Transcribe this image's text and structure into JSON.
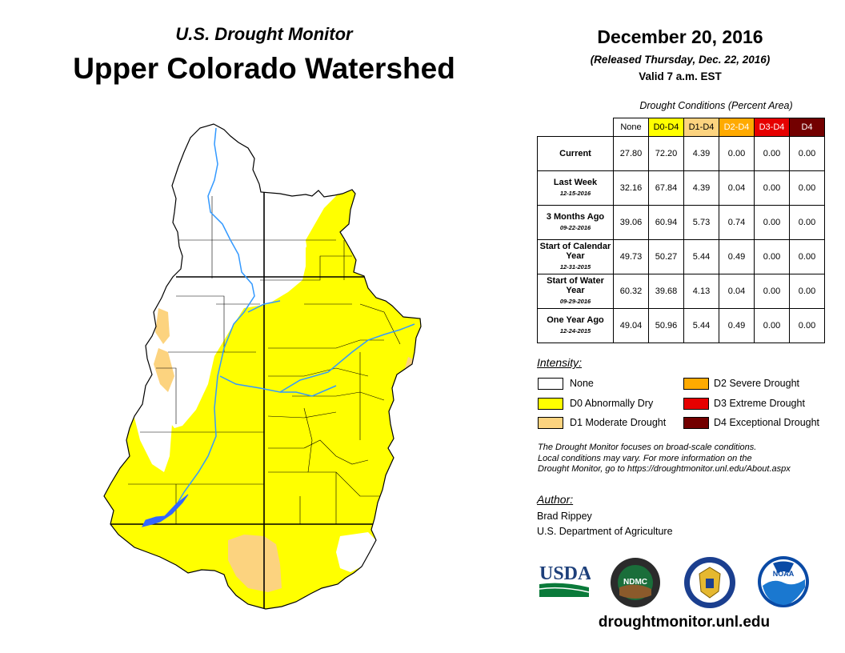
{
  "header": {
    "subtitle": "U.S. Drought Monitor",
    "title": "Upper Colorado Watershed",
    "date": "December 20, 2016",
    "released": "(Released Thursday, Dec. 22, 2016)",
    "valid": "Valid 7 a.m. EST"
  },
  "table": {
    "caption": "Drought Conditions (Percent Area)",
    "columns": [
      "None",
      "D0-D4",
      "D1-D4",
      "D2-D4",
      "D3-D4",
      "D4"
    ],
    "column_colors": [
      "#ffffff",
      "#ffff00",
      "#fcd37f",
      "#ffaa00",
      "#e60000",
      "#730000"
    ],
    "column_text_colors": [
      "#000000",
      "#000000",
      "#000000",
      "#ffffff",
      "#ffffff",
      "#ffffff"
    ],
    "rows": [
      {
        "label": "Current",
        "date": "",
        "values": [
          "27.80",
          "72.20",
          "4.39",
          "0.00",
          "0.00",
          "0.00"
        ]
      },
      {
        "label": "Last Week",
        "date": "12-15-2016",
        "values": [
          "32.16",
          "67.84",
          "4.39",
          "0.04",
          "0.00",
          "0.00"
        ]
      },
      {
        "label": "3 Months Ago",
        "date": "09-22-2016",
        "values": [
          "39.06",
          "60.94",
          "5.73",
          "0.74",
          "0.00",
          "0.00"
        ]
      },
      {
        "label": "Start of Calendar Year",
        "date": "12-31-2015",
        "values": [
          "49.73",
          "50.27",
          "5.44",
          "0.49",
          "0.00",
          "0.00"
        ]
      },
      {
        "label": "Start of Water Year",
        "date": "09-29-2016",
        "values": [
          "60.32",
          "39.68",
          "4.13",
          "0.04",
          "0.00",
          "0.00"
        ]
      },
      {
        "label": "One Year Ago",
        "date": "12-24-2015",
        "values": [
          "49.04",
          "50.96",
          "5.44",
          "0.49",
          "0.00",
          "0.00"
        ]
      }
    ]
  },
  "legend": {
    "title": "Intensity:",
    "items": [
      {
        "label": "None",
        "color": "#ffffff"
      },
      {
        "label": "D0 Abnormally Dry",
        "color": "#ffff00"
      },
      {
        "label": "D1 Moderate Drought",
        "color": "#fcd37f"
      },
      {
        "label": "D2 Severe Drought",
        "color": "#ffaa00"
      },
      {
        "label": "D3 Extreme Drought",
        "color": "#e60000"
      },
      {
        "label": "D4 Exceptional Drought",
        "color": "#730000"
      }
    ]
  },
  "note": {
    "line1": "The Drought Monitor focuses on broad-scale conditions.",
    "line2": "Local conditions may vary. For more information on the",
    "line3": "Drought Monitor, go to https://droughtmonitor.unl.edu/About.aspx"
  },
  "author": {
    "label": "Author:",
    "name": "Brad Rippey",
    "org": "U.S. Department of Agriculture"
  },
  "logos": {
    "usda": "USDA",
    "ndmc": "NDMC",
    "noaa": "NOAA"
  },
  "website": "droughtmonitor.unl.edu",
  "map_colors": {
    "none": "#ffffff",
    "d0": "#ffff00",
    "d1": "#fcd37f",
    "river": "#3399ff",
    "border": "#000000"
  }
}
